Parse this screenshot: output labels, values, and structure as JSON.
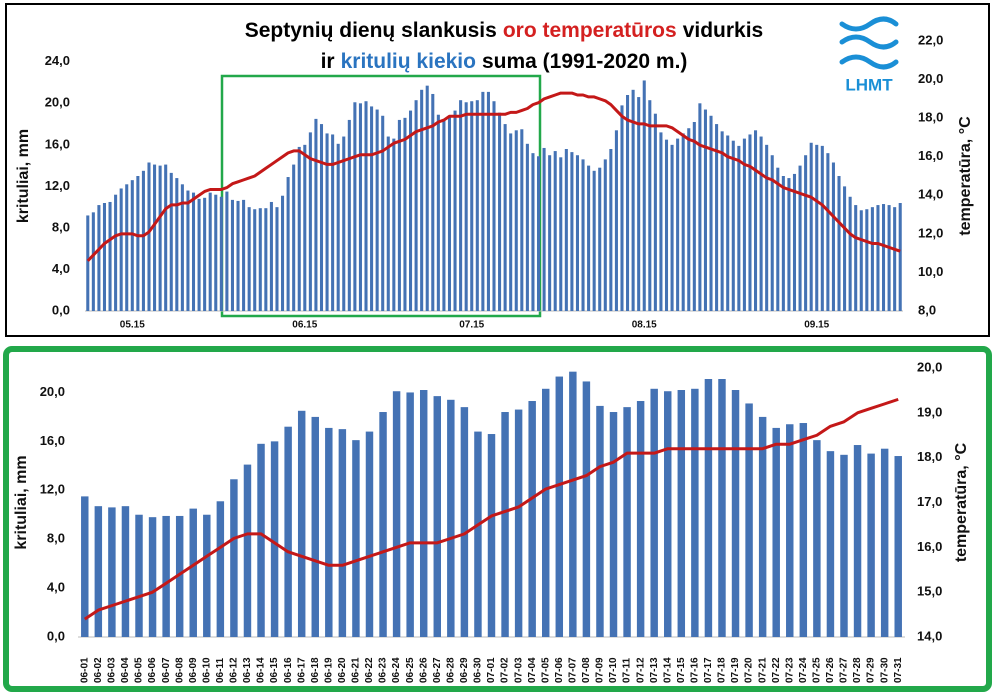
{
  "logo": "LHMT",
  "chart_data": [
    {
      "type": "bar_line",
      "title": [
        [
          {
            "text": "Septynių dienų slankusis",
            "color": "#000000"
          },
          {
            "text": "oro temperatūros",
            "color": "#d42020"
          },
          {
            "text": "vidurkis",
            "color": "#000000"
          }
        ],
        [
          {
            "text": "ir",
            "color": "#000000"
          },
          {
            "text": "kritulių kiekio",
            "color": "#2a74c0"
          },
          {
            "text": "suma (1991-2020 m.)",
            "color": "#000000"
          }
        ]
      ],
      "ylabel": "krituliai, mm",
      "y2label": "temperatūra, °C",
      "ylim": [
        0,
        26
      ],
      "yticks": [
        {
          "value": 0,
          "label": "0,0"
        },
        {
          "value": 4,
          "label": "4,0"
        },
        {
          "value": 8,
          "label": "8,0"
        },
        {
          "value": 12,
          "label": "12,0"
        },
        {
          "value": 16,
          "label": "16,0"
        },
        {
          "value": 20,
          "label": "20,0"
        },
        {
          "value": 24,
          "label": "24,0"
        }
      ],
      "y2lim": [
        8,
        22
      ],
      "y2ticks": [
        {
          "value": 8,
          "label": "8,0"
        },
        {
          "value": 10,
          "label": "10,0"
        },
        {
          "value": 12,
          "label": "12,0"
        },
        {
          "value": 14,
          "label": "14,0"
        },
        {
          "value": 16,
          "label": "16,0"
        },
        {
          "value": 18,
          "label": "18,0"
        },
        {
          "value": 20,
          "label": "20,0"
        },
        {
          "value": 22,
          "label": "22,0"
        }
      ],
      "categories": [
        null,
        null,
        null,
        null,
        null,
        null,
        null,
        null,
        "05.15",
        null,
        null,
        null,
        null,
        null,
        null,
        null,
        null,
        null,
        null,
        null,
        null,
        null,
        null,
        null,
        null,
        null,
        null,
        null,
        null,
        null,
        null,
        null,
        null,
        null,
        null,
        null,
        null,
        null,
        null,
        "06.15",
        null,
        null,
        null,
        null,
        null,
        null,
        null,
        null,
        null,
        null,
        null,
        null,
        null,
        null,
        null,
        null,
        null,
        null,
        null,
        null,
        null,
        null,
        null,
        null,
        null,
        null,
        null,
        null,
        null,
        "07.15",
        null,
        null,
        null,
        null,
        null,
        null,
        null,
        null,
        null,
        null,
        null,
        null,
        null,
        null,
        null,
        null,
        null,
        null,
        null,
        null,
        null,
        null,
        null,
        null,
        null,
        null,
        null,
        null,
        null,
        null,
        "08.15",
        null,
        null,
        null,
        null,
        null,
        null,
        null,
        null,
        null,
        null,
        null,
        null,
        null,
        null,
        null,
        null,
        null,
        null,
        null,
        null,
        null,
        null,
        null,
        null,
        null,
        null,
        null,
        null,
        null,
        null,
        "09.15",
        null,
        null,
        null,
        null,
        null,
        null,
        null,
        null,
        null,
        null,
        null,
        null,
        null,
        null,
        null
      ],
      "series": [
        {
          "type": "bar",
          "color": "#4472b4",
          "values": [
            9.2,
            9.5,
            10.2,
            10.4,
            10.5,
            11.2,
            11.8,
            12.2,
            12.6,
            13.0,
            13.5,
            14.3,
            14.1,
            14.0,
            14.1,
            13.3,
            12.8,
            12.2,
            11.6,
            11.4,
            10.8,
            10.9,
            11.4,
            11.2,
            11.0,
            11.5,
            10.7,
            10.6,
            10.7,
            10.0,
            9.8,
            9.9,
            9.9,
            10.5,
            10.0,
            11.1,
            12.9,
            14.1,
            15.8,
            16.0,
            17.2,
            18.5,
            18.0,
            17.1,
            17.0,
            16.1,
            16.8,
            18.4,
            20.1,
            20.0,
            20.2,
            19.7,
            19.4,
            18.8,
            16.8,
            16.6,
            18.4,
            18.6,
            19.3,
            20.3,
            21.3,
            21.7,
            20.9,
            18.9,
            18.4,
            18.8,
            19.3,
            20.3,
            20.1,
            20.2,
            20.3,
            21.1,
            21.1,
            20.2,
            19.1,
            18.0,
            17.1,
            17.4,
            17.5,
            16.1,
            15.2,
            14.9,
            15.7,
            15.0,
            15.4,
            14.8,
            15.6,
            15.3,
            15.0,
            14.6,
            14.0,
            13.5,
            13.8,
            14.6,
            15.6,
            17.4,
            19.8,
            20.8,
            21.3,
            20.6,
            22.2,
            20.3,
            19.0,
            17.2,
            16.5,
            16.0,
            16.6,
            17.1,
            17.6,
            18.2,
            20.0,
            19.4,
            18.8,
            18.0,
            17.3,
            16.9,
            16.4,
            15.9,
            16.6,
            17.0,
            17.4,
            16.8,
            16.0,
            15.0,
            13.8,
            13.0,
            12.8,
            13.2,
            14.0,
            15.0,
            16.2,
            16.0,
            15.9,
            15.2,
            14.3,
            13.0,
            12.0,
            11.0,
            10.2,
            9.7,
            9.8,
            10.0,
            10.2,
            10.3,
            10.2,
            10.0,
            10.4
          ]
        },
        {
          "type": "line",
          "axis": "y2",
          "color": "#c41818",
          "values": [
            10.6,
            10.9,
            11.2,
            11.5,
            11.7,
            11.9,
            12.0,
            12.0,
            12.0,
            11.9,
            11.9,
            12.1,
            12.5,
            12.9,
            13.3,
            13.5,
            13.5,
            13.6,
            13.6,
            13.8,
            14.0,
            14.2,
            14.3,
            14.3,
            14.3,
            14.4,
            14.6,
            14.7,
            14.8,
            14.9,
            15.0,
            15.2,
            15.4,
            15.6,
            15.8,
            16.0,
            16.2,
            16.3,
            16.3,
            16.1,
            15.9,
            15.8,
            15.7,
            15.6,
            15.6,
            15.7,
            15.8,
            15.9,
            16.0,
            16.1,
            16.1,
            16.1,
            16.2,
            16.3,
            16.5,
            16.7,
            16.8,
            16.9,
            17.1,
            17.3,
            17.4,
            17.5,
            17.6,
            17.8,
            17.9,
            18.1,
            18.1,
            18.1,
            18.2,
            18.2,
            18.2,
            18.2,
            18.2,
            18.2,
            18.2,
            18.2,
            18.3,
            18.3,
            18.4,
            18.5,
            18.7,
            18.8,
            19.0,
            19.1,
            19.2,
            19.3,
            19.3,
            19.3,
            19.2,
            19.2,
            19.1,
            19.1,
            19.0,
            18.9,
            18.7,
            18.4,
            18.1,
            17.9,
            17.8,
            17.7,
            17.7,
            17.6,
            17.6,
            17.6,
            17.6,
            17.5,
            17.3,
            17.1,
            16.9,
            16.8,
            16.6,
            16.5,
            16.4,
            16.3,
            16.2,
            16.0,
            15.9,
            15.8,
            15.6,
            15.5,
            15.3,
            15.1,
            14.9,
            14.8,
            14.6,
            14.4,
            14.3,
            14.2,
            14.1,
            14.0,
            13.9,
            13.7,
            13.5,
            13.2,
            12.9,
            12.6,
            12.3,
            12.0,
            11.8,
            11.7,
            11.6,
            11.5,
            11.5,
            11.4,
            11.3,
            11.2,
            11.1
          ]
        }
      ]
    },
    {
      "type": "bar_line",
      "ylabel": "krituliai, mm",
      "y2label": "temperatūra, °C",
      "ylim": [
        0,
        22
      ],
      "yticks": [
        {
          "value": 0,
          "label": "0,0"
        },
        {
          "value": 4,
          "label": "4,0"
        },
        {
          "value": 8,
          "label": "8,0"
        },
        {
          "value": 12,
          "label": "12,0"
        },
        {
          "value": 16,
          "label": "16,0"
        },
        {
          "value": 20,
          "label": "20,0"
        }
      ],
      "y2lim": [
        14,
        20
      ],
      "y2ticks": [
        {
          "value": 14,
          "label": "14,0"
        },
        {
          "value": 15,
          "label": "15,0"
        },
        {
          "value": 16,
          "label": "16,0"
        },
        {
          "value": 17,
          "label": "17,0"
        },
        {
          "value": 18,
          "label": "18,0"
        },
        {
          "value": 19,
          "label": "19,0"
        },
        {
          "value": 20,
          "label": "20,0"
        }
      ],
      "categories": [
        "06-01",
        "06-02",
        "06-03",
        "06-04",
        "06-05",
        "06-06",
        "06-07",
        "06-08",
        "06-09",
        "06-10",
        "06-11",
        "06-12",
        "06-13",
        "06-14",
        "06-15",
        "06-16",
        "06-17",
        "06-18",
        "06-19",
        "06-20",
        "06-21",
        "06-22",
        "06-23",
        "06-24",
        "06-25",
        "06-26",
        "06-27",
        "06-28",
        "06-29",
        "06-30",
        "07-01",
        "07-02",
        "07-03",
        "07-04",
        "07-05",
        "07-06",
        "07-07",
        "07-08",
        "07-09",
        "07-10",
        "07-11",
        "07-12",
        "07-13",
        "07-14",
        "07-15",
        "07-16",
        "07-17",
        "07-18",
        "07-19",
        "07-20",
        "07-21",
        "07-22",
        "07-23",
        "07-24",
        "07-25",
        "07-26",
        "07-27",
        "07-28",
        "07-29",
        "07-30",
        "07-31"
      ],
      "series": [
        {
          "type": "bar",
          "color": "#4472b4",
          "values": [
            11.5,
            10.7,
            10.6,
            10.7,
            10.0,
            9.8,
            9.9,
            9.9,
            10.5,
            10.0,
            11.1,
            12.9,
            14.1,
            15.8,
            16.0,
            17.2,
            18.5,
            18.0,
            17.1,
            17.0,
            16.1,
            16.8,
            18.4,
            20.1,
            20.0,
            20.2,
            19.7,
            19.4,
            18.8,
            16.8,
            16.6,
            18.4,
            18.6,
            19.3,
            20.3,
            21.3,
            21.7,
            20.9,
            18.9,
            18.4,
            18.8,
            19.3,
            20.3,
            20.1,
            20.2,
            20.3,
            21.1,
            21.1,
            20.2,
            19.1,
            18.0,
            17.1,
            17.4,
            17.5,
            16.1,
            15.2,
            14.9,
            15.7,
            15.0,
            15.4,
            14.8
          ]
        },
        {
          "type": "line",
          "axis": "y2",
          "color": "#c41818",
          "values": [
            14.4,
            14.6,
            14.7,
            14.8,
            14.9,
            15.0,
            15.2,
            15.4,
            15.6,
            15.8,
            16.0,
            16.2,
            16.3,
            16.3,
            16.1,
            15.9,
            15.8,
            15.7,
            15.6,
            15.6,
            15.7,
            15.8,
            15.9,
            16.0,
            16.1,
            16.1,
            16.1,
            16.2,
            16.3,
            16.5,
            16.7,
            16.8,
            16.9,
            17.1,
            17.3,
            17.4,
            17.5,
            17.6,
            17.8,
            17.9,
            18.1,
            18.1,
            18.1,
            18.2,
            18.2,
            18.2,
            18.2,
            18.2,
            18.2,
            18.2,
            18.2,
            18.3,
            18.3,
            18.4,
            18.5,
            18.7,
            18.8,
            19.0,
            19.1,
            19.2,
            19.3
          ]
        }
      ]
    }
  ]
}
